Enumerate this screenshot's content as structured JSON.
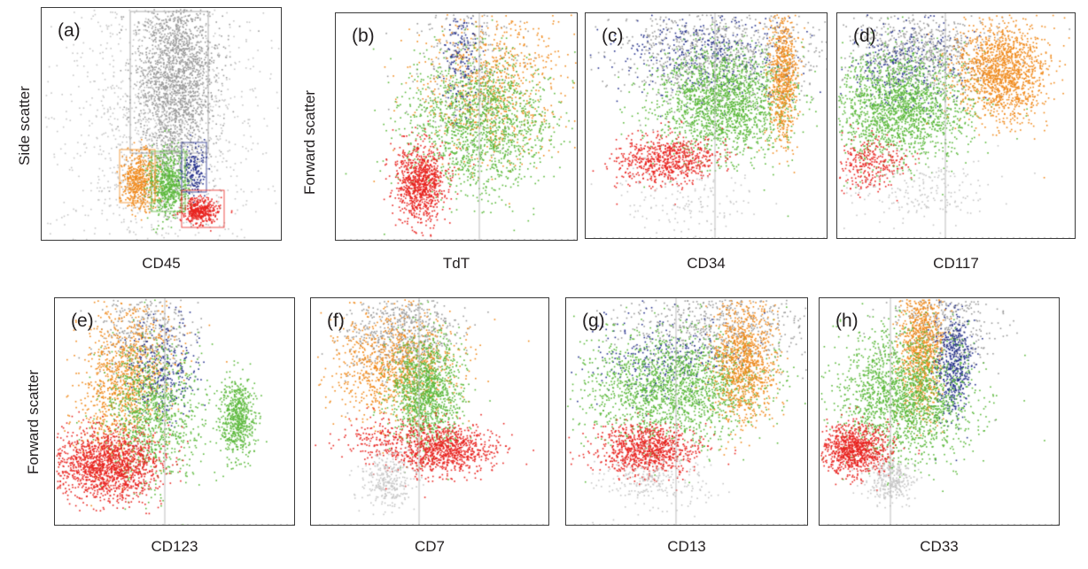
{
  "panels": [
    {
      "id": "a",
      "label": "(a)",
      "xlabel": "CD45",
      "ylabel": "Side scatter"
    },
    {
      "id": "b",
      "label": "(b)",
      "xlabel": "TdT",
      "ylabel": "Forward scatter"
    },
    {
      "id": "c",
      "label": "(c)",
      "xlabel": "CD34"
    },
    {
      "id": "d",
      "label": "(d)",
      "xlabel": "CD117"
    },
    {
      "id": "e",
      "label": "(e)",
      "xlabel": "CD123",
      "ylabel": "Forward scatter"
    },
    {
      "id": "f",
      "label": "(f)",
      "xlabel": "CD7"
    },
    {
      "id": "g",
      "label": "(g)",
      "xlabel": "CD13"
    },
    {
      "id": "h",
      "label": "(h)",
      "xlabel": "CD33"
    }
  ],
  "colors": {
    "red": "#e8231f",
    "green": "#5ab83a",
    "orange": "#f08a1c",
    "blue": "#25318c",
    "grey": "#9a9a9a",
    "lightgrey": "#c6c6c6"
  }
}
